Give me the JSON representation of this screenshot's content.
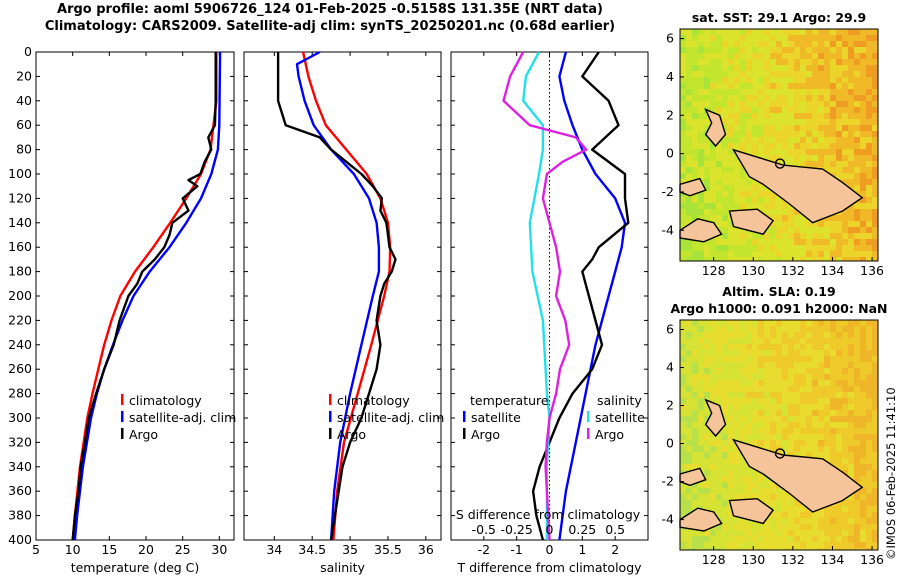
{
  "header": {
    "title_line1": "Argo profile: aoml 5906726_124 01-Feb-2025 -0.5158S 131.35E (NRT data)",
    "title_line2": "Climatology: CARS2009. Satellite-adj clim: synTS_20250201.nc (0.68d earlier)"
  },
  "stamp": "©IMOS 06-Feb-2025 11:41:10",
  "colors": {
    "climatology": "#ff0000",
    "satellite": "#0000ff",
    "argo": "#000000",
    "satellite_s": "#22e0e8",
    "argo_s": "#e020e0",
    "land": "#f6c49a"
  },
  "chart_data": [
    {
      "type": "line",
      "name": "temperature",
      "xlabel": "temperature (deg C)",
      "ylabel": "",
      "xlim": [
        5,
        32
      ],
      "ylim": [
        0,
        400
      ],
      "y_reversed": true,
      "xticks": [
        5,
        10,
        15,
        20,
        25,
        30
      ],
      "yticks": [
        0,
        20,
        40,
        60,
        80,
        100,
        120,
        140,
        160,
        180,
        200,
        220,
        240,
        260,
        280,
        300,
        320,
        340,
        360,
        380,
        400
      ],
      "legend": [
        "climatology",
        "satellite-adj. clim",
        "Argo"
      ],
      "series": [
        {
          "name": "climatology",
          "depth": [
            0,
            40,
            80,
            100,
            120,
            140,
            160,
            180,
            200,
            220,
            240,
            260,
            280,
            300,
            340,
            380,
            400
          ],
          "values": [
            29.6,
            29.6,
            28.8,
            27.5,
            25.5,
            23.3,
            21.0,
            18.5,
            16.5,
            15.3,
            14.3,
            13.5,
            12.7,
            12.0,
            11.0,
            10.3,
            10.0
          ]
        },
        {
          "name": "satellite-adj. clim",
          "depth": [
            0,
            60,
            80,
            100,
            120,
            140,
            160,
            180,
            200,
            220,
            240,
            260,
            280,
            300,
            340,
            380,
            400
          ],
          "values": [
            30.1,
            30.0,
            29.8,
            28.9,
            27.5,
            25.5,
            23.2,
            20.5,
            18.3,
            16.8,
            15.5,
            14.3,
            13.3,
            12.5,
            11.4,
            10.6,
            10.3
          ]
        },
        {
          "name": "Argo",
          "depth": [
            0,
            20,
            40,
            60,
            70,
            80,
            90,
            100,
            105,
            110,
            120,
            130,
            140,
            150,
            160,
            170,
            180,
            190,
            200,
            220,
            240,
            260,
            280,
            300,
            320,
            340,
            360,
            380,
            400
          ],
          "values": [
            29.5,
            29.5,
            29.5,
            29.4,
            28.5,
            28.9,
            28.0,
            27.4,
            25.8,
            27.0,
            25.0,
            25.8,
            23.6,
            23.2,
            22.5,
            21.2,
            19.5,
            18.8,
            17.6,
            16.4,
            15.6,
            14.3,
            13.2,
            12.2,
            11.7,
            11.1,
            10.8,
            10.3,
            10.0
          ]
        }
      ]
    },
    {
      "type": "line",
      "name": "salinity",
      "xlabel": "salinity",
      "ylabel": "",
      "xlim": [
        33.6,
        36.2
      ],
      "ylim": [
        0,
        400
      ],
      "y_reversed": true,
      "xticks": [
        34,
        34.5,
        35,
        35.5,
        36
      ],
      "legend": [
        "climatology",
        "satellite-adj. clim",
        "Argo"
      ],
      "series": [
        {
          "name": "climatology",
          "depth": [
            0,
            20,
            40,
            60,
            80,
            100,
            120,
            140,
            160,
            180,
            200,
            240,
            280,
            320,
            360,
            400
          ],
          "values": [
            34.38,
            34.45,
            34.55,
            34.68,
            34.95,
            35.22,
            35.4,
            35.5,
            35.53,
            35.52,
            35.45,
            35.28,
            35.1,
            34.92,
            34.83,
            34.78
          ]
        },
        {
          "name": "satellite-adj. clim",
          "depth": [
            0,
            10,
            20,
            40,
            60,
            80,
            100,
            120,
            140,
            160,
            180,
            200,
            240,
            280,
            320,
            360,
            400
          ],
          "values": [
            34.6,
            34.3,
            34.32,
            34.4,
            34.52,
            34.75,
            35.05,
            35.25,
            35.35,
            35.38,
            35.38,
            35.3,
            35.15,
            35.0,
            34.87,
            34.79,
            34.75
          ]
        },
        {
          "name": "Argo",
          "depth": [
            0,
            20,
            40,
            50,
            60,
            70,
            80,
            90,
            100,
            110,
            120,
            130,
            140,
            150,
            160,
            170,
            180,
            190,
            200,
            220,
            240,
            260,
            280,
            300,
            320,
            340,
            360,
            380,
            400
          ],
          "values": [
            34.05,
            34.05,
            34.05,
            34.1,
            34.15,
            34.6,
            34.75,
            34.95,
            35.15,
            35.3,
            35.42,
            35.4,
            35.48,
            35.5,
            35.52,
            35.6,
            35.55,
            35.45,
            35.4,
            35.35,
            35.4,
            35.35,
            35.25,
            35.15,
            35.0,
            34.9,
            34.85,
            34.8,
            34.75
          ]
        }
      ]
    },
    {
      "type": "line",
      "name": "difference",
      "xlabel": "T difference from climatology",
      "x2label": "S difference from climatology",
      "xlim": [
        -3,
        3
      ],
      "x2lim": [
        -0.75,
        0.75
      ],
      "ylim": [
        0,
        400
      ],
      "y_reversed": true,
      "xticks": [
        -2,
        -1,
        0,
        1,
        2
      ],
      "x2ticks": [
        -0.5,
        -0.25,
        0,
        0.25,
        0.5
      ],
      "x2ticklabels": [
        "-0.5",
        "-0.25",
        "0",
        "0.25",
        "0.5"
      ],
      "legend_temperature_title": "temperature",
      "legend_salinity_title": "salinity",
      "legend_items": [
        "satellite",
        "Argo"
      ],
      "series": [
        {
          "name": "T satellite",
          "axis": "T",
          "depth": [
            0,
            20,
            40,
            60,
            80,
            100,
            120,
            140,
            160,
            180,
            200,
            240,
            280,
            320,
            360,
            400
          ],
          "values": [
            0.5,
            0.3,
            0.45,
            0.7,
            1.0,
            1.4,
            2.0,
            2.3,
            2.2,
            2.0,
            1.8,
            1.4,
            1.1,
            0.8,
            0.5,
            0.3
          ]
        },
        {
          "name": "T Argo",
          "axis": "T",
          "depth": [
            0,
            20,
            40,
            60,
            80,
            100,
            120,
            140,
            160,
            170,
            180,
            200,
            240,
            260,
            280,
            300,
            320,
            340,
            360,
            380,
            400
          ],
          "values": [
            1.5,
            1.0,
            1.8,
            2.1,
            1.3,
            2.3,
            2.3,
            2.4,
            1.5,
            1.3,
            1.0,
            1.2,
            1.6,
            1.3,
            0.7,
            0.3,
            0.0,
            -0.3,
            -0.5,
            -0.4,
            -0.2
          ]
        },
        {
          "name": "S satellite",
          "axis": "S",
          "depth": [
            0,
            20,
            40,
            60,
            80,
            100,
            140,
            180,
            220,
            260,
            280,
            300,
            340,
            380,
            400
          ],
          "values": [
            -0.08,
            -0.18,
            -0.2,
            -0.05,
            -0.05,
            -0.08,
            -0.15,
            -0.13,
            -0.05,
            -0.03,
            -0.02,
            0.0,
            -0.02,
            -0.02,
            -0.02
          ]
        },
        {
          "name": "S Argo",
          "axis": "S",
          "depth": [
            0,
            20,
            40,
            60,
            70,
            80,
            90,
            100,
            120,
            140,
            160,
            180,
            200,
            220,
            240,
            260,
            280,
            300,
            320,
            340,
            360,
            380,
            400
          ],
          "values": [
            -0.2,
            -0.3,
            -0.35,
            -0.15,
            0.2,
            0.28,
            0.1,
            -0.02,
            -0.05,
            0.0,
            0.05,
            0.08,
            0.05,
            0.12,
            0.15,
            0.08,
            0.05,
            0.0,
            -0.02,
            -0.03,
            -0.02,
            -0.01,
            0.0
          ]
        }
      ]
    },
    {
      "type": "heatmap",
      "name": "sst_map",
      "title": "sat. SST: 29.1 Argo: 29.9",
      "xlim": [
        126.3,
        136.3
      ],
      "ylim": [
        -5.6,
        6.5
      ],
      "xticks": [
        128,
        130,
        132,
        134,
        136
      ],
      "yticks": [
        -4,
        -2,
        0,
        2,
        4,
        6
      ],
      "marker_lon": 131.35,
      "marker_lat": -0.52
    },
    {
      "type": "heatmap",
      "name": "sla_map",
      "title_line1": "Altim. SLA: 0.19",
      "title_line2": "Argo h1000: 0.091 h2000: NaN",
      "xlim": [
        126.3,
        136.3
      ],
      "ylim": [
        -5.6,
        6.5
      ],
      "xticks": [
        128,
        130,
        132,
        134,
        136
      ],
      "yticks": [
        -4,
        -2,
        0,
        2,
        4,
        6
      ],
      "marker_lon": 131.35,
      "marker_lat": -0.52
    }
  ]
}
